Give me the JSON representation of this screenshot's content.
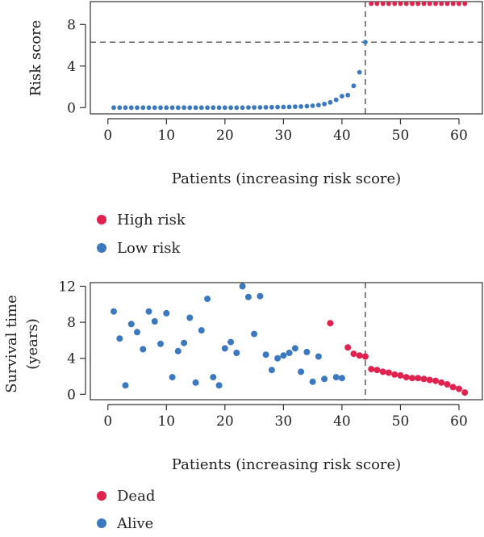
{
  "colors": {
    "high": "#e0224f",
    "low": "#3c78bd",
    "dead": "#e0224f",
    "alive": "#3c78bd"
  },
  "chart_data": [
    {
      "type": "scatter",
      "xlabel": "Patients (increasing risk score)",
      "ylabel": "Risk score",
      "xlim": [
        -3,
        64
      ],
      "ylim": [
        -0.6,
        10.2
      ],
      "xticks": [
        0,
        10,
        20,
        30,
        40,
        50,
        60
      ],
      "yticks": [
        0,
        4,
        8
      ],
      "cutoff_x": 44,
      "cutoff_y": 6.3,
      "series": [
        {
          "name": "Low risk",
          "x": [
            1,
            2,
            3,
            4,
            5,
            6,
            7,
            8,
            9,
            10,
            11,
            12,
            13,
            14,
            15,
            16,
            17,
            18,
            19,
            20,
            21,
            22,
            23,
            24,
            25,
            26,
            27,
            28,
            29,
            30,
            31,
            32,
            33,
            34,
            35,
            36,
            37,
            38,
            39,
            40,
            41,
            42,
            43,
            44
          ],
          "y": [
            0,
            0,
            0,
            0,
            0,
            0,
            0,
            0,
            0,
            0,
            0,
            0,
            0,
            0,
            0,
            0,
            0,
            0,
            0,
            0,
            0,
            0,
            0,
            0.01,
            0.01,
            0.02,
            0.03,
            0.04,
            0.05,
            0.06,
            0.07,
            0.09,
            0.11,
            0.14,
            0.18,
            0.25,
            0.35,
            0.5,
            0.75,
            1.1,
            1.2,
            2.1,
            3.4,
            6.3
          ]
        },
        {
          "name": "High risk",
          "x": [
            45,
            46,
            47,
            48,
            49,
            50,
            51,
            52,
            53,
            54,
            55,
            56,
            57,
            58,
            59,
            60,
            61
          ],
          "y": [
            10,
            10,
            10,
            10,
            10,
            10,
            10,
            10,
            10,
            10,
            10,
            10,
            10,
            10,
            10,
            10,
            10
          ]
        }
      ]
    },
    {
      "type": "scatter",
      "xlabel": "Patients (increasing risk score)",
      "ylabel": "Survival time",
      "ylabel2": "(years)",
      "xlim": [
        -3,
        64
      ],
      "ylim": [
        -0.6,
        12.4
      ],
      "xticks": [
        0,
        10,
        20,
        30,
        40,
        50,
        60
      ],
      "yticks": [
        0,
        4,
        8,
        12
      ],
      "cutoff_x": 44,
      "series": [
        {
          "name": "Alive",
          "x": [
            1,
            2,
            3,
            4,
            5,
            6,
            7,
            8,
            9,
            10,
            11,
            12,
            13,
            14,
            15,
            16,
            17,
            18,
            19,
            20,
            21,
            22,
            23,
            24,
            25,
            26,
            27,
            28,
            29,
            30,
            31,
            32,
            33,
            34,
            35,
            36,
            37,
            39,
            40
          ],
          "y": [
            9.2,
            6.2,
            1.0,
            7.8,
            6.9,
            5.0,
            9.2,
            8.1,
            5.6,
            9.0,
            1.9,
            4.8,
            5.7,
            8.5,
            1.3,
            7.1,
            10.6,
            1.9,
            1.0,
            5.1,
            5.8,
            4.6,
            12.0,
            10.8,
            6.7,
            10.9,
            4.4,
            2.7,
            4.0,
            4.3,
            4.6,
            5.1,
            2.5,
            4.7,
            1.4,
            4.2,
            1.7,
            1.9,
            1.8
          ]
        },
        {
          "name": "Dead",
          "x": [
            38,
            41,
            42,
            43,
            44,
            45,
            46,
            47,
            48,
            49,
            50,
            51,
            52,
            53,
            54,
            55,
            56,
            57,
            58,
            59,
            60,
            61
          ],
          "y": [
            7.9,
            5.2,
            4.5,
            4.3,
            4.2,
            2.8,
            2.7,
            2.5,
            2.4,
            2.2,
            2.1,
            1.9,
            1.8,
            1.8,
            1.7,
            1.6,
            1.5,
            1.3,
            1.1,
            0.8,
            0.6,
            0.2
          ]
        }
      ]
    }
  ]
}
